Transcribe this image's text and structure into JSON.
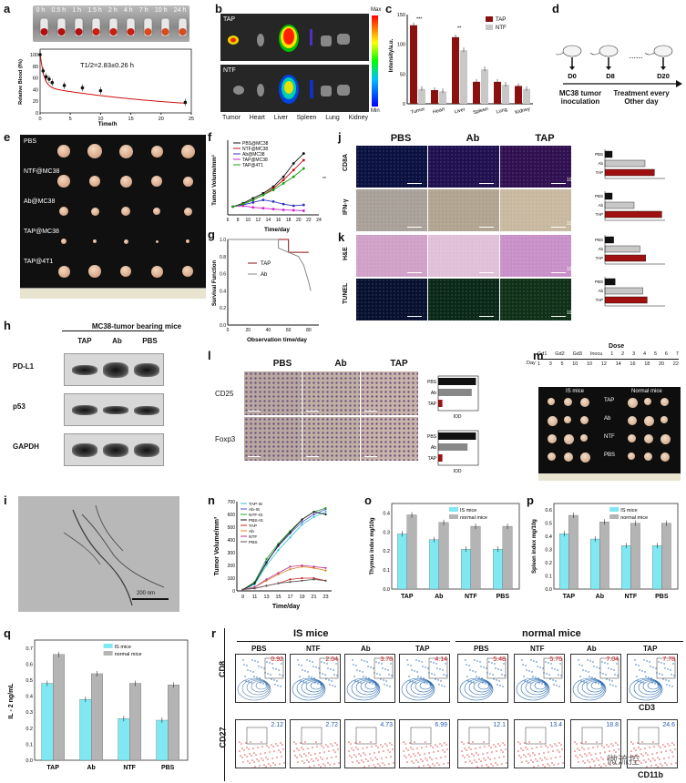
{
  "panel_labels": [
    "a",
    "b",
    "c",
    "d",
    "e",
    "f",
    "g",
    "h",
    "i",
    "j",
    "k",
    "l",
    "m",
    "n",
    "o",
    "p",
    "q",
    "r"
  ],
  "a": {
    "times": [
      "0 h",
      "0.5 h",
      "1 h",
      "1.5 h",
      "2 h",
      "4 h",
      "7 h",
      "10 h",
      "24 h"
    ],
    "half_life": "T1/2=2.83±0.26 h",
    "xlabel": "Time/h",
    "ylabel": "Relative Blood (I%)",
    "xticks": [
      "0",
      "5",
      "10",
      "15",
      "20",
      "25"
    ],
    "yticks": [
      "0",
      "20",
      "40",
      "60",
      "80",
      "100"
    ]
  },
  "b": {
    "rows": [
      "TAP",
      "NTF"
    ],
    "organs": [
      "Tumor",
      "Heart",
      "Liver",
      "Spleen",
      "Lung",
      "Kidney"
    ],
    "max": "Max",
    "min": "Min"
  },
  "c": {
    "ylabel": "Intensity/a.u.",
    "legend": [
      "TAP",
      "NTF"
    ],
    "categories": [
      "Tumor",
      "Heart",
      "Liver",
      "Spleen",
      "Lung",
      "Kidney"
    ],
    "yticks": [
      "0",
      "50",
      "100",
      "150"
    ],
    "sig": [
      "***",
      "**"
    ]
  },
  "d": {
    "days": [
      "D0",
      "D8",
      "D20"
    ],
    "dots": "......",
    "inoc": "MC38 tumor inoculation",
    "treat": "Treatment every Other day"
  },
  "e": {
    "groups": [
      "PBS",
      "NTF@MC38",
      "Ab@MC38",
      "TAP@MC38",
      "TAP@4T1"
    ]
  },
  "f": {
    "legend": [
      "PBS@MC38",
      "NTF@MC38",
      "Ab@MC38",
      "TAP@MC38",
      "TAP@4T1"
    ],
    "xlabel": "Time/day",
    "ylabel": "Tumor Volume/mm³",
    "xticks": [
      "6",
      "8",
      "10",
      "12",
      "14",
      "16",
      "18",
      "20",
      "22",
      "24"
    ],
    "sig": "**"
  },
  "g": {
    "legend": [
      "TAP",
      "Ab"
    ],
    "xlabel": "Observation time/day",
    "ylabel": "Survival Function",
    "xticks": [
      "0",
      "20",
      "40",
      "60",
      "80"
    ],
    "yticks": [
      "0.0",
      "0.2",
      "0.4",
      "0.6",
      "0.8",
      "1.0"
    ]
  },
  "h": {
    "title": "MC38-tumor bearing mice",
    "cols": [
      "TAP",
      "Ab",
      "PBS"
    ],
    "rows": [
      "PD-L1",
      "p53",
      "GAPDH"
    ]
  },
  "j": {
    "cols": [
      "PBS",
      "Ab",
      "TAP"
    ],
    "rows": [
      "CD8A",
      "IFN-γ"
    ],
    "scale": "100 μm",
    "bar_labels": [
      "PBS",
      "Ab",
      "TAP"
    ]
  },
  "k": {
    "rows": [
      "H&E",
      "TUNEL"
    ],
    "scale": "100 μm",
    "bar_labels": [
      "PBS",
      "Ab",
      "TAP"
    ]
  },
  "l": {
    "cols": [
      "PBS",
      "Ab",
      "TAP"
    ],
    "rows": [
      "CD25",
      "Foxp3"
    ],
    "scale": "100 μm",
    "bar_labels": [
      "PBS",
      "Ab",
      "TAP"
    ],
    "xlabel": "IOD"
  },
  "m": {
    "dose_label": "Dose",
    "day_label": "Day",
    "dose_row": [
      "Gd1",
      "Gd2",
      "Gd3",
      "Inocu",
      "1",
      "2",
      "3",
      "4",
      "5",
      "6",
      "7"
    ],
    "day_row": [
      "1",
      "3",
      "5",
      "10",
      "10",
      "12",
      "14",
      "16",
      "18",
      "20",
      "22"
    ],
    "groups": [
      "IS mice",
      "Normal mice"
    ],
    "rows": [
      "TAP",
      "Ab",
      "NTF",
      "PBS"
    ]
  },
  "i": {
    "scale": "200 nm"
  },
  "n": {
    "legend": [
      "TAP-IS",
      "Ab-IS",
      "NTF-IS",
      "PBS-IS",
      "TAP",
      "Ab",
      "NTF",
      "PBS"
    ],
    "xlabel": "Time/day",
    "ylabel": "Tumor Volume/mm³",
    "xticks": [
      "9",
      "11",
      "13",
      "15",
      "17",
      "19",
      "21",
      "23"
    ],
    "yticks": [
      "0",
      "100",
      "200",
      "300",
      "400",
      "500",
      "600",
      "700"
    ]
  },
  "o": {
    "ylabel": "Thymus index mg/10g",
    "legend": [
      "IS mice",
      "normal mice"
    ],
    "categories": [
      "TAP",
      "Ab",
      "NTF",
      "PBS"
    ],
    "yticks": [
      "0.0",
      "0.1",
      "0.2",
      "0.3",
      "0.4"
    ]
  },
  "p": {
    "ylabel": "Spleen index mg/10g",
    "legend": [
      "IS mice",
      "normal mice"
    ],
    "categories": [
      "TAP",
      "Ab",
      "NTF",
      "PBS"
    ],
    "yticks": [
      "0.0",
      "0.1",
      "0.2",
      "0.3",
      "0.4",
      "0.5",
      "0.6"
    ]
  },
  "q": {
    "ylabel": "IL - 2 ng/mL",
    "legend": [
      "IS mice",
      "normal mice"
    ],
    "categories": [
      "TAP",
      "Ab",
      "NTF",
      "PBS"
    ],
    "yticks": [
      "0.0",
      "0.1",
      "0.2",
      "0.3",
      "0.4",
      "0.5",
      "0.6",
      "0.7"
    ]
  },
  "r": {
    "groups": [
      "IS mice",
      "normal mice"
    ],
    "cols": [
      "PBS",
      "NTF",
      "Ab",
      "TAP",
      "PBS",
      "NTF",
      "Ab",
      "TAP"
    ],
    "row1_vals": [
      "0.92",
      "2.04",
      "3.78",
      "4.14",
      "5.48",
      "5.76",
      "7.04",
      "7.78"
    ],
    "row2_vals": [
      "2.12",
      "2.72",
      "4.73",
      "6.99",
      "12.1",
      "13.4",
      "18.8",
      "24.6"
    ],
    "row1_axis": "CD8",
    "row1_x": "CD3",
    "row2_axis": "CD27",
    "row2_x": "CD11b",
    "watermark": "微流控"
  },
  "colors": {
    "tap": "#8b1010",
    "ntf": "#c8c8c8",
    "is": "#7fe8f2",
    "normal": "#b4b4b4"
  },
  "chart_data": [
    {
      "panel": "a",
      "type": "line",
      "xlabel": "Time/h",
      "ylabel": "Relative Blood (I%)",
      "x": [
        0,
        0.5,
        1,
        1.5,
        2,
        4,
        7,
        10,
        24
      ],
      "values": [
        100,
        72,
        62,
        58,
        52,
        47,
        43,
        38,
        18
      ],
      "ylim": [
        0,
        100
      ]
    },
    {
      "panel": "c",
      "type": "bar",
      "categories": [
        "Tumor",
        "Heart",
        "Liver",
        "Spleen",
        "Lung",
        "Kidney"
      ],
      "series": [
        {
          "name": "TAP",
          "values": [
            132,
            23,
            112,
            37,
            37,
            30
          ]
        },
        {
          "name": "NTF",
          "values": [
            25,
            21,
            90,
            58,
            32,
            25
          ]
        }
      ],
      "ylabel": "Intensity/a.u.",
      "ylim": [
        0,
        150
      ]
    },
    {
      "panel": "f",
      "type": "line",
      "x": [
        7,
        9,
        11,
        13,
        15,
        17,
        19,
        21
      ],
      "series": [
        {
          "name": "PBS@MC38",
          "values": [
            50,
            70,
            100,
            130,
            170,
            230,
            310,
            370
          ]
        },
        {
          "name": "NTF@MC38",
          "values": [
            50,
            65,
            90,
            120,
            160,
            210,
            270,
            330
          ]
        },
        {
          "name": "Ab@MC38",
          "values": [
            50,
            60,
            75,
            90,
            80,
            65,
            55,
            60
          ]
        },
        {
          "name": "TAP@MC38",
          "values": [
            50,
            55,
            45,
            40,
            35,
            30,
            28,
            25
          ]
        },
        {
          "name": "TAP@4T1",
          "values": [
            50,
            65,
            90,
            120,
            150,
            190,
            230,
            280
          ]
        }
      ],
      "xlabel": "Time/day",
      "ylabel": "Tumor Volume/mm³",
      "ylim": [
        0,
        450
      ]
    },
    {
      "panel": "g",
      "type": "line",
      "series": [
        {
          "name": "TAP",
          "x": [
            0,
            60,
            60,
            80
          ],
          "values": [
            1.0,
            1.0,
            0.85,
            0.85
          ]
        },
        {
          "name": "Ab",
          "x": [
            0,
            50,
            50,
            70,
            75,
            80,
            82
          ],
          "values": [
            1.0,
            1.0,
            0.9,
            0.8,
            0.7,
            0.5,
            0.4
          ]
        }
      ],
      "xlabel": "Observation time/day",
      "ylabel": "Survival Function",
      "ylim": [
        0,
        1
      ]
    },
    {
      "panel": "j1",
      "type": "bar",
      "categories": [
        "PBS",
        "Ab",
        "TAP"
      ],
      "values": [
        10,
        55,
        68
      ]
    },
    {
      "panel": "j2",
      "type": "bar",
      "categories": [
        "PBS",
        "Ab",
        "TAP"
      ],
      "values": [
        10,
        40,
        78
      ]
    },
    {
      "panel": "k1",
      "type": "bar",
      "categories": [
        "PBS",
        "Ab",
        "TAP"
      ],
      "values": [
        12,
        48,
        56
      ]
    },
    {
      "panel": "k2",
      "type": "bar",
      "categories": [
        "PBS",
        "Ab",
        "TAP"
      ],
      "values": [
        14,
        52,
        58
      ]
    },
    {
      "panel": "l1",
      "type": "bar",
      "categories": [
        "PBS",
        "Ab",
        "TAP"
      ],
      "values": [
        9,
        8,
        1
      ],
      "xlabel": "IOD"
    },
    {
      "panel": "l2",
      "type": "bar",
      "categories": [
        "PBS",
        "Ab",
        "TAP"
      ],
      "values": [
        9,
        7,
        1
      ],
      "xlabel": "IOD"
    },
    {
      "panel": "n",
      "type": "line",
      "x": [
        9,
        11,
        13,
        15,
        17,
        19,
        21,
        23
      ],
      "series": [
        {
          "name": "TAP-IS",
          "values": [
            10,
            50,
            200,
            320,
            420,
            520,
            580,
            620
          ]
        },
        {
          "name": "Ab-IS",
          "values": [
            10,
            60,
            230,
            350,
            450,
            540,
            600,
            640
          ]
        },
        {
          "name": "NTF-IS",
          "values": [
            10,
            70,
            250,
            370,
            470,
            560,
            620,
            650
          ]
        },
        {
          "name": "PBS-IS",
          "values": [
            10,
            60,
            220,
            360,
            460,
            560,
            620,
            600
          ]
        },
        {
          "name": "TAP",
          "values": [
            10,
            20,
            40,
            60,
            90,
            100,
            100,
            80
          ]
        },
        {
          "name": "Ab",
          "values": [
            10,
            30,
            80,
            130,
            170,
            190,
            180,
            160
          ]
        },
        {
          "name": "NTF",
          "values": [
            10,
            30,
            90,
            140,
            190,
            200,
            190,
            180
          ]
        },
        {
          "name": "PBS",
          "values": [
            10,
            20,
            40,
            60,
            70,
            80,
            90,
            80
          ]
        }
      ],
      "xlabel": "Time/day",
      "ylabel": "Tumor Volume/mm³",
      "ylim": [
        0,
        700
      ]
    },
    {
      "panel": "o",
      "type": "bar",
      "categories": [
        "TAP",
        "Ab",
        "NTF",
        "PBS"
      ],
      "series": [
        {
          "name": "IS mice",
          "values": [
            0.29,
            0.26,
            0.21,
            0.21
          ]
        },
        {
          "name": "normal mice",
          "values": [
            0.39,
            0.35,
            0.33,
            0.33
          ]
        }
      ],
      "ylabel": "Thymus index mg/10g",
      "ylim": [
        0,
        0.45
      ]
    },
    {
      "panel": "p",
      "type": "bar",
      "categories": [
        "TAP",
        "Ab",
        "NTF",
        "PBS"
      ],
      "series": [
        {
          "name": "IS mice",
          "values": [
            0.42,
            0.38,
            0.33,
            0.33
          ]
        },
        {
          "name": "normal mice",
          "values": [
            0.56,
            0.51,
            0.5,
            0.5
          ]
        }
      ],
      "ylabel": "Spleen index mg/10g",
      "ylim": [
        0,
        0.65
      ]
    },
    {
      "panel": "q",
      "type": "bar",
      "categories": [
        "TAP",
        "Ab",
        "NTF",
        "PBS"
      ],
      "series": [
        {
          "name": "IS mice",
          "values": [
            0.48,
            0.38,
            0.26,
            0.25
          ]
        },
        {
          "name": "normal mice",
          "values": [
            0.66,
            0.54,
            0.48,
            0.47
          ]
        }
      ],
      "ylabel": "IL - 2 ng/mL",
      "ylim": [
        0,
        0.75
      ]
    }
  ]
}
